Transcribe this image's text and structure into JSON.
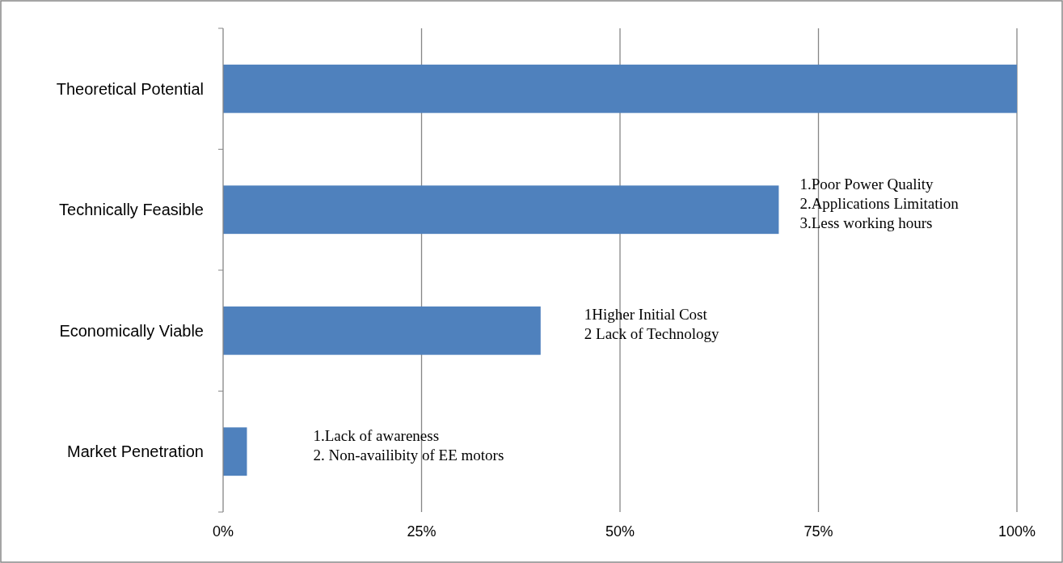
{
  "chart_data": {
    "type": "bar",
    "orientation": "horizontal",
    "categories": [
      "Theoretical Potential",
      "Technically Feasible",
      "Economically Viable",
      "Market Penetration"
    ],
    "values": [
      100,
      70,
      40,
      3
    ],
    "color": "#4f81bd",
    "xlim": [
      0,
      100
    ],
    "xticks": [
      {
        "value": 0,
        "label": "0%"
      },
      {
        "value": 25,
        "label": "25%"
      },
      {
        "value": 50,
        "label": "50%"
      },
      {
        "value": 75,
        "label": "75%"
      },
      {
        "value": 100,
        "label": "100%"
      }
    ],
    "grid": "x",
    "annotations": [
      "1.Poor Power Quality\n2.Applications Limitation\n3.Less working hours",
      "1Higher Initial Cost\n2 Lack of Technology",
      "1.Lack of awareness\n2. Non-availibity of EE motors"
    ]
  }
}
